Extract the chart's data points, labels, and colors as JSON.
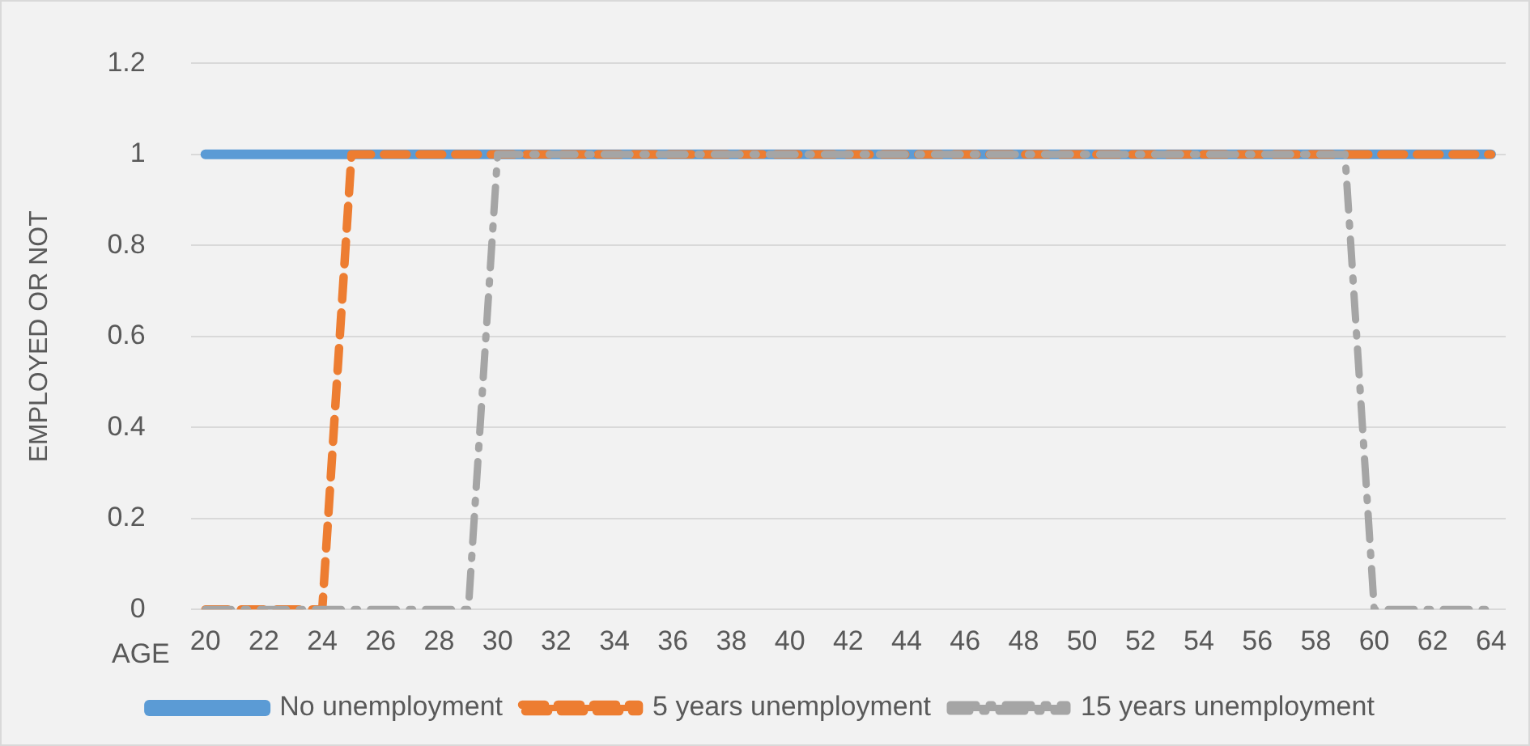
{
  "chart_data": {
    "type": "line",
    "xlabel": "AGE",
    "ylabel": "EMPLOYED OR NOT",
    "categories": [
      "20",
      null,
      "22",
      null,
      "24",
      null,
      "26",
      null,
      "28",
      null,
      "30",
      null,
      "32",
      null,
      "34",
      null,
      "36",
      null,
      "38",
      null,
      "40",
      null,
      "42",
      null,
      "44",
      null,
      "46",
      null,
      "48",
      null,
      "50",
      null,
      "52",
      null,
      "54",
      null,
      "56",
      null,
      "58",
      null,
      "60",
      null,
      "62",
      null,
      "64"
    ],
    "series": [
      {
        "name": "No unemployment",
        "color": "#5b9bd5",
        "line_style": "solid",
        "values": [
          1,
          1,
          1,
          1,
          1,
          1,
          1,
          1,
          1,
          1,
          1,
          1,
          1,
          1,
          1,
          1,
          1,
          1,
          1,
          1,
          1,
          1,
          1,
          1,
          1,
          1,
          1,
          1,
          1,
          1,
          1,
          1,
          1,
          1,
          1,
          1,
          1,
          1,
          1,
          1,
          1,
          1,
          1,
          1,
          1
        ]
      },
      {
        "name": "5 years unemployment",
        "color": "#ed7d31",
        "line_style": "dashed",
        "values": [
          0,
          0,
          0,
          0,
          0,
          1,
          1,
          1,
          1,
          1,
          1,
          1,
          1,
          1,
          1,
          1,
          1,
          1,
          1,
          1,
          1,
          1,
          1,
          1,
          1,
          1,
          1,
          1,
          1,
          1,
          1,
          1,
          1,
          1,
          1,
          1,
          1,
          1,
          1,
          1,
          1,
          1,
          1,
          1,
          1
        ]
      },
      {
        "name": "15 years unemployment",
        "color": "#a5a5a5",
        "line_style": "dashdot",
        "values": [
          0,
          0,
          0,
          0,
          0,
          0,
          0,
          0,
          0,
          0,
          1,
          1,
          1,
          1,
          1,
          1,
          1,
          1,
          1,
          1,
          1,
          1,
          1,
          1,
          1,
          1,
          1,
          1,
          1,
          1,
          1,
          1,
          1,
          1,
          1,
          1,
          1,
          1,
          1,
          1,
          0,
          0,
          0,
          0,
          0
        ]
      }
    ],
    "ylim": [
      0,
      1.2
    ],
    "yticks": [
      0,
      0.2,
      0.4,
      0.6,
      0.8,
      1,
      1.2
    ],
    "grid": "y",
    "legend": "bottom",
    "marker": "none"
  }
}
